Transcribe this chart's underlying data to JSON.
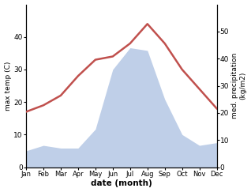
{
  "months": [
    "Jan",
    "Feb",
    "Mar",
    "Apr",
    "May",
    "Jun",
    "Jul",
    "Aug",
    "Sep",
    "Oct",
    "Nov",
    "Dec"
  ],
  "temperature": [
    17,
    19,
    22,
    28,
    33,
    34,
    38,
    44,
    38,
    30,
    24,
    18
  ],
  "precipitation": [
    6,
    8,
    7,
    7,
    14,
    36,
    44,
    43,
    25,
    12,
    8,
    9
  ],
  "temp_color": "#c0504d",
  "precip_fill_color": "#bfcfe8",
  "ylabel_left": "max temp (C)",
  "ylabel_right": "med. precipitation\n(kg/m2)",
  "xlabel": "date (month)",
  "ylim_left": [
    0,
    50
  ],
  "ylim_right": [
    0,
    60
  ],
  "yticks_left": [
    0,
    10,
    20,
    30,
    40
  ],
  "yticks_right": [
    0,
    10,
    20,
    30,
    40,
    50
  ],
  "background_color": "#ffffff"
}
